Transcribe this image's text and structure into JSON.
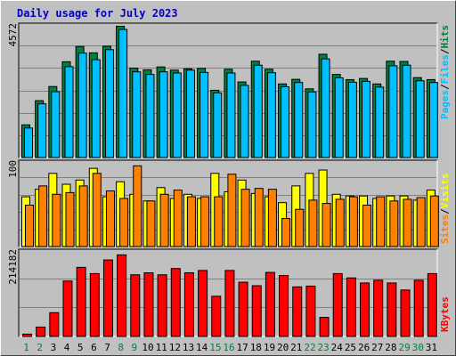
{
  "title": "Daily usage for July 2023",
  "colors": {
    "background": "#c0c0c0",
    "title": "#0000c0",
    "grid": "#808080",
    "hits": "#008040",
    "files": "#00c0ff",
    "sites": "#ff8000",
    "visits": "#ffff00",
    "kbytes": "#ff0000",
    "day_normal": "#000000",
    "day_weekend": "#008040"
  },
  "chart_data": [
    {
      "type": "bar",
      "name": "hits-files-pages",
      "ymax_label": "4572",
      "ylim": [
        0,
        4572
      ],
      "side_legend": [
        "Pages",
        "/",
        "Files",
        "/",
        "Hits"
      ],
      "categories": [
        "1",
        "2",
        "3",
        "4",
        "5",
        "6",
        "7",
        "8",
        "9",
        "10",
        "11",
        "12",
        "13",
        "14",
        "15",
        "16",
        "17",
        "18",
        "19",
        "20",
        "21",
        "22",
        "23",
        "24",
        "25",
        "26",
        "27",
        "28",
        "29",
        "30",
        "31"
      ],
      "weekend": [
        true,
        true,
        false,
        false,
        false,
        false,
        false,
        true,
        true,
        false,
        false,
        false,
        false,
        false,
        true,
        true,
        false,
        false,
        false,
        false,
        false,
        true,
        true,
        false,
        false,
        false,
        false,
        false,
        true,
        true,
        false
      ],
      "series": [
        {
          "name": "Hits",
          "values": [
            1150,
            1990,
            2480,
            3340,
            3870,
            3650,
            3880,
            4572,
            3120,
            3060,
            3160,
            3050,
            3100,
            3110,
            2350,
            3080,
            2640,
            3360,
            3080,
            2570,
            2730,
            2400,
            3600,
            2900,
            2720,
            2760,
            2570,
            3360,
            3350,
            2790,
            2720
          ]
        },
        {
          "name": "Files",
          "values": [
            1040,
            1880,
            2300,
            3170,
            3640,
            3410,
            3760,
            4460,
            2990,
            2900,
            2990,
            2950,
            3050,
            2970,
            2260,
            2950,
            2520,
            3220,
            2960,
            2470,
            2620,
            2290,
            3440,
            2780,
            2630,
            2660,
            2460,
            3200,
            3220,
            2680,
            2620
          ]
        },
        {
          "name": "Pages",
          "values": [
            0,
            0,
            0,
            0,
            0,
            0,
            0,
            0,
            0,
            0,
            0,
            0,
            0,
            0,
            0,
            0,
            0,
            0,
            0,
            0,
            0,
            0,
            0,
            0,
            0,
            0,
            0,
            0,
            0,
            0,
            0
          ]
        }
      ]
    },
    {
      "type": "bar",
      "name": "visits-sites",
      "ymax_label": "100",
      "ylim": [
        0,
        100
      ],
      "side_legend": [
        "Sites",
        "/",
        "Visits"
      ],
      "categories": [
        "1",
        "2",
        "3",
        "4",
        "5",
        "6",
        "7",
        "8",
        "9",
        "10",
        "11",
        "12",
        "13",
        "14",
        "15",
        "16",
        "17",
        "18",
        "19",
        "20",
        "21",
        "22",
        "23",
        "24",
        "25",
        "26",
        "27",
        "28",
        "29",
        "30",
        "31"
      ],
      "series": [
        {
          "name": "Visits",
          "values": [
            60,
            69,
            88,
            75,
            80,
            94,
            60,
            78,
            63,
            55,
            71,
            58,
            63,
            58,
            88,
            66,
            80,
            64,
            60,
            53,
            73,
            88,
            92,
            63,
            61,
            61,
            58,
            61,
            61,
            56,
            68
          ]
        },
        {
          "name": "Sites",
          "values": [
            50,
            73,
            63,
            65,
            73,
            88,
            67,
            58,
            97,
            55,
            63,
            68,
            60,
            60,
            60,
            87,
            69,
            70,
            69,
            34,
            45,
            56,
            52,
            57,
            60,
            50,
            60,
            55,
            57,
            59,
            61
          ]
        }
      ]
    },
    {
      "type": "bar",
      "name": "kbytes",
      "ymax_label": "214182",
      "ylim": [
        0,
        214182
      ],
      "side_legend": [
        "KBytes"
      ],
      "categories": [
        "1",
        "2",
        "3",
        "4",
        "5",
        "6",
        "7",
        "8",
        "9",
        "10",
        "11",
        "12",
        "13",
        "14",
        "15",
        "16",
        "17",
        "18",
        "19",
        "20",
        "21",
        "22",
        "23",
        "24",
        "25",
        "26",
        "27",
        "28",
        "29",
        "30",
        "31"
      ],
      "series": [
        {
          "name": "KBytes",
          "values": [
            7000,
            25000,
            62000,
            143000,
            178000,
            162000,
            197000,
            210000,
            159000,
            164000,
            159000,
            175000,
            164000,
            170000,
            104000,
            170000,
            140000,
            131000,
            165000,
            157000,
            128000,
            130000,
            50000,
            162000,
            151000,
            138000,
            145000,
            138000,
            120000,
            145000,
            162000
          ]
        }
      ]
    }
  ]
}
